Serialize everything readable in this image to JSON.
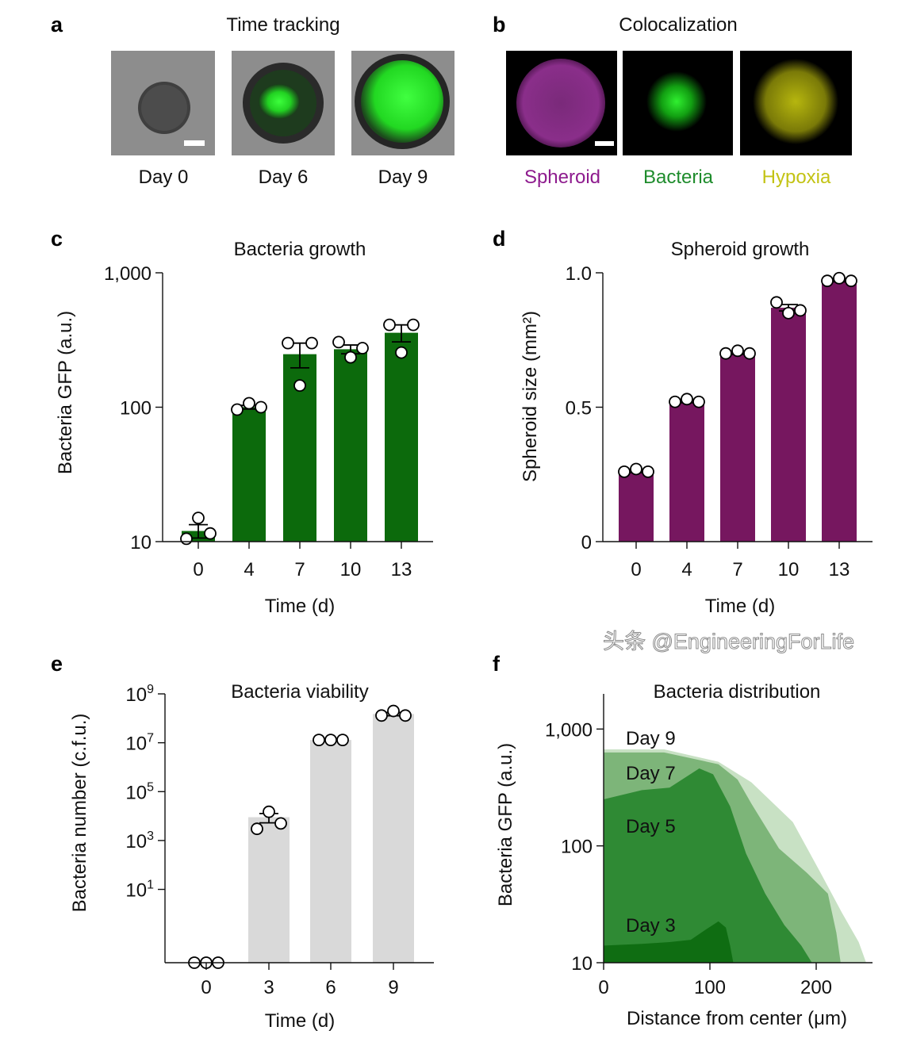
{
  "panel_a": {
    "letter": "a",
    "title": "Time tracking",
    "images": [
      {
        "label": "Day 0"
      },
      {
        "label": "Day 6"
      },
      {
        "label": "Day 9"
      }
    ]
  },
  "panel_b": {
    "letter": "b",
    "title": "Colocalization",
    "channels": [
      {
        "label": "Spheroid",
        "color": "#8e1b8e"
      },
      {
        "label": "Bacteria",
        "color": "#1e8c2c"
      },
      {
        "label": "Hypoxia",
        "color": "#c3c314"
      }
    ]
  },
  "watermark": "头条 @EngineeringForLife",
  "chart_data": [
    {
      "panel": "c",
      "type": "bar",
      "title": "Bacteria growth",
      "xlabel": "Time (d)",
      "ylabel": "Bacteria GFP (a.u.)",
      "yscale": "log",
      "ylim": [
        10,
        1000
      ],
      "yticks": [
        {
          "value": 10,
          "label": "10"
        },
        {
          "value": 100,
          "label": "100"
        },
        {
          "value": 1000,
          "label": "1,000"
        }
      ],
      "categories": [
        "0",
        "4",
        "7",
        "10",
        "13"
      ],
      "values": [
        12,
        100,
        248,
        270,
        358
      ],
      "points": [
        [
          10.5,
          15,
          11.5
        ],
        [
          96,
          107,
          100
        ],
        [
          300,
          145,
          300
        ],
        [
          305,
          235,
          275
        ],
        [
          410,
          255,
          410
        ]
      ],
      "color": "#0c6a0c"
    },
    {
      "panel": "d",
      "type": "bar",
      "title": "Spheroid growth",
      "xlabel": "Time (d)",
      "ylabel": "Spheroid size (mm²)",
      "yscale": "linear",
      "ylim": [
        0,
        1.0
      ],
      "yticks": [
        {
          "value": 0,
          "label": "0"
        },
        {
          "value": 0.5,
          "label": "0.5"
        },
        {
          "value": 1.0,
          "label": "1.0"
        }
      ],
      "categories": [
        "0",
        "4",
        "7",
        "10",
        "13"
      ],
      "values": [
        0.26,
        0.52,
        0.7,
        0.87,
        0.97
      ],
      "points": [
        [
          0.26,
          0.27,
          0.26
        ],
        [
          0.52,
          0.53,
          0.52
        ],
        [
          0.7,
          0.71,
          0.7
        ],
        [
          0.89,
          0.85,
          0.86
        ],
        [
          0.97,
          0.98,
          0.97
        ]
      ],
      "color": "#76175f"
    },
    {
      "panel": "e",
      "type": "bar",
      "title": "Bacteria viability",
      "xlabel": "Time (d)",
      "ylabel": "Bacteria number (c.f.u.)",
      "yscale": "log",
      "ylim": [
        0.01,
        1000000000
      ],
      "yticks": [
        {
          "value": 10,
          "base": "10",
          "exp": "1"
        },
        {
          "value": 1000,
          "base": "10",
          "exp": "3"
        },
        {
          "value": 100000,
          "base": "10",
          "exp": "5"
        },
        {
          "value": 10000000,
          "base": "10",
          "exp": "7"
        },
        {
          "value": 1000000000,
          "base": "10",
          "exp": "9"
        }
      ],
      "categories": [
        "0",
        "3",
        "6",
        "9"
      ],
      "values": [
        0,
        9000,
        13000000,
        150000000
      ],
      "points": [
        [
          0,
          0,
          0
        ],
        [
          3000,
          15000,
          5000
        ],
        [
          13000000,
          13000000,
          13000000
        ],
        [
          130000000,
          200000000,
          130000000
        ]
      ],
      "color": "#d9d9d9"
    },
    {
      "panel": "f",
      "type": "area",
      "title": "Bacteria distribution",
      "xlabel": "Distance from center (μm)",
      "ylabel": "Bacteria GFP (a.u.)",
      "yscale": "log",
      "ylim": [
        10,
        2000
      ],
      "xlim": [
        0,
        250
      ],
      "xticks": [
        {
          "value": 0,
          "label": "0"
        },
        {
          "value": 100,
          "label": "100"
        },
        {
          "value": 200,
          "label": "200"
        }
      ],
      "yticks": [
        {
          "value": 10,
          "label": "10"
        },
        {
          "value": 100,
          "label": "100"
        },
        {
          "value": 1000,
          "label": "1,000"
        }
      ],
      "series": [
        {
          "name": "Day 9",
          "color": "#c8e1c4",
          "x": [
            0,
            57,
            108,
            139,
            178,
            204,
            224,
            240,
            247
          ],
          "y": [
            670,
            670,
            525,
            350,
            160,
            59,
            27,
            15,
            10
          ]
        },
        {
          "name": "Day 7",
          "color": "#7db579",
          "x": [
            0,
            57,
            108,
            126,
            139,
            165,
            191,
            211,
            219,
            223
          ],
          "y": [
            630,
            630,
            500,
            370,
            230,
            95,
            59,
            39,
            18,
            10
          ]
        },
        {
          "name": "Day 5",
          "color": "#2f8a34",
          "x": [
            0,
            36,
            62,
            90,
            103,
            119,
            134,
            152,
            170,
            186,
            196
          ],
          "y": [
            250,
            300,
            315,
            460,
            410,
            218,
            86,
            39,
            21,
            14,
            10
          ]
        },
        {
          "name": "Day 3",
          "color": "#0f6d12",
          "x": [
            0,
            36,
            62,
            82,
            95,
            108,
            115,
            119,
            122
          ],
          "y": [
            14,
            14.5,
            15,
            15.7,
            18.9,
            22.6,
            20,
            14,
            10
          ]
        }
      ]
    }
  ]
}
